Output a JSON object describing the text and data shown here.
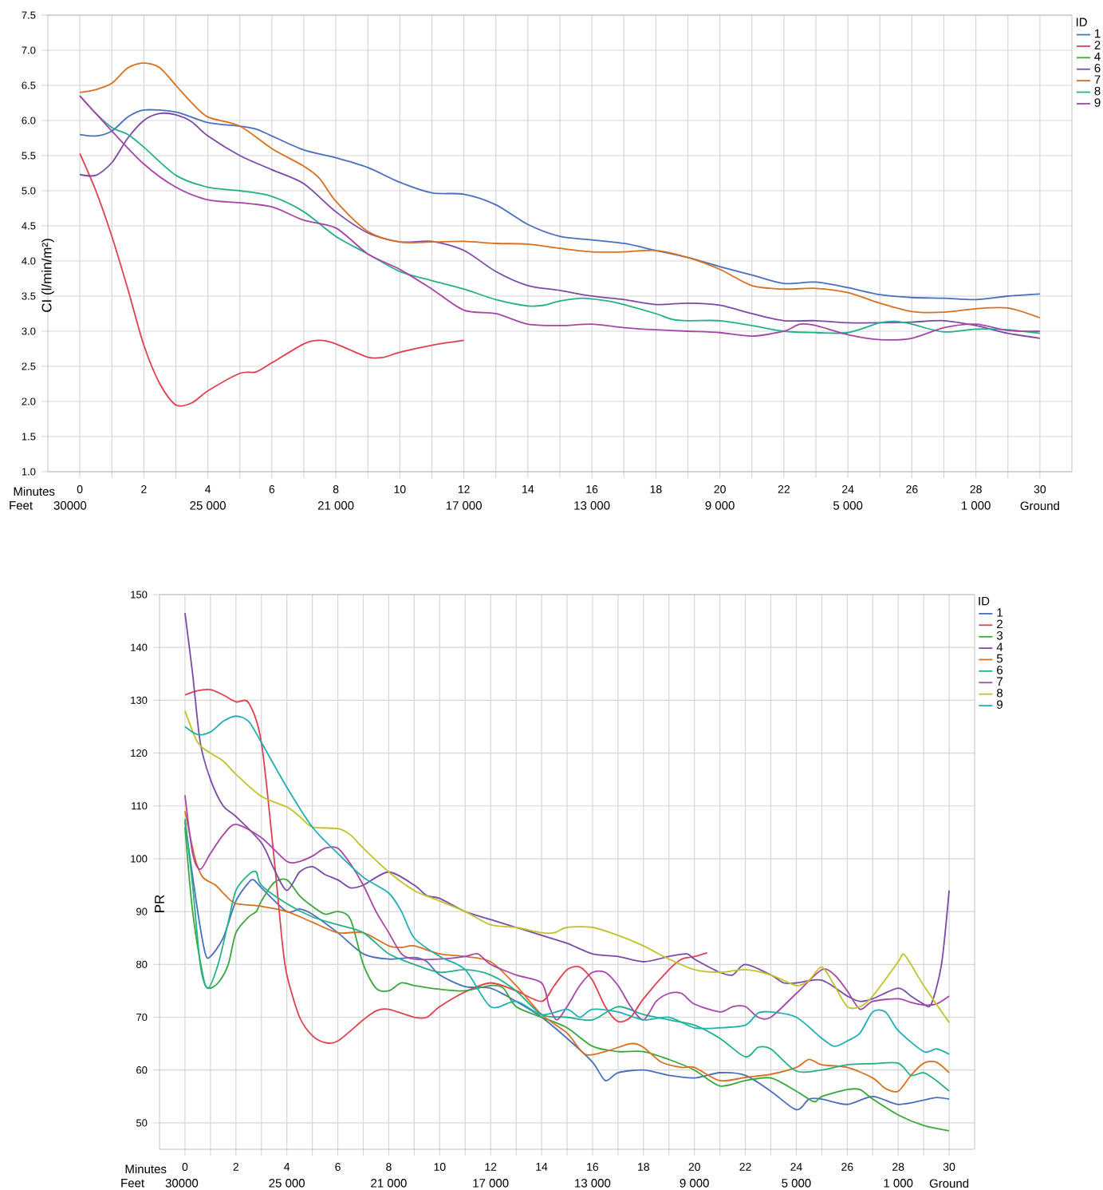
{
  "chart_data": [
    {
      "type": "line",
      "ylabel": "CI (l/min/m²)",
      "xlabel": "Minutes",
      "x2label": "Feet",
      "legend_title": "ID",
      "legend": "top right",
      "grid": true,
      "xlim": [
        -1,
        31
      ],
      "ylim": [
        1.0,
        7.5
      ],
      "x2lim": [
        30000,
        -2000
      ],
      "xticks": [
        0,
        {
          "value": 1,
          "label": null
        },
        2,
        {
          "value": 3,
          "label": null
        },
        4,
        {
          "value": 5,
          "label": null
        },
        6,
        {
          "value": 7,
          "label": null
        },
        8,
        {
          "value": 9,
          "label": null
        },
        10,
        {
          "value": 11,
          "label": null
        },
        12,
        {
          "value": 13,
          "label": null
        },
        14,
        {
          "value": 15,
          "label": null
        },
        16,
        {
          "value": 17,
          "label": null
        },
        18,
        {
          "value": 19,
          "label": null
        },
        20,
        {
          "value": 21,
          "label": null
        },
        22,
        {
          "value": 23,
          "label": null
        },
        24,
        {
          "value": 25,
          "label": null
        },
        26,
        {
          "value": 27,
          "label": null
        },
        28,
        {
          "value": 29,
          "label": null
        },
        30
      ],
      "x2ticks": [
        30000,
        {
          "value": 25000,
          "label": "25 000"
        },
        {
          "value": 21000,
          "label": "21 000"
        },
        {
          "value": 17000,
          "label": "17 000"
        },
        {
          "value": 13000,
          "label": "13 000"
        },
        {
          "value": 9000,
          "label": "9 000"
        },
        {
          "value": 5000,
          "label": "5 000"
        },
        {
          "value": 1000,
          "label": "1 000"
        },
        {
          "value": -1000,
          "label": "Ground"
        }
      ],
      "yticks": [
        {
          "value": 1.0,
          "label": "1.0"
        },
        {
          "value": 1.5,
          "label": "1.5"
        },
        {
          "value": 2.0,
          "label": "2.0"
        },
        {
          "value": 2.5,
          "label": "2.5"
        },
        {
          "value": 3.0,
          "label": "3.0"
        },
        {
          "value": 3.5,
          "label": "3.5"
        },
        {
          "value": 4.0,
          "label": "4.0"
        },
        {
          "value": 4.5,
          "label": "4.5"
        },
        {
          "value": 5.0,
          "label": "5.0"
        },
        {
          "value": 5.5,
          "label": "5.5"
        },
        {
          "value": 6.0,
          "label": "6.0"
        },
        {
          "value": 6.5,
          "label": "6.5"
        },
        {
          "value": 7.0,
          "label": "7.0"
        },
        {
          "value": 7.5,
          "label": "7.5"
        }
      ],
      "series": [
        {
          "name": "1",
          "color": "#4a6fbe",
          "x": [
            0,
            0.5,
            1,
            1.5,
            2,
            3,
            4,
            5,
            5.5,
            6,
            7,
            8,
            9,
            10,
            11,
            12,
            13,
            14,
            15,
            16,
            17,
            18,
            19,
            20,
            21,
            22,
            23,
            24,
            25,
            26,
            27,
            28,
            29,
            30
          ],
          "values": [
            5.8,
            5.78,
            5.85,
            6.05,
            6.15,
            6.12,
            5.97,
            5.92,
            5.88,
            5.78,
            5.58,
            5.47,
            5.33,
            5.12,
            4.97,
            4.95,
            4.8,
            4.52,
            4.35,
            4.3,
            4.25,
            4.15,
            4.05,
            3.92,
            3.8,
            3.68,
            3.7,
            3.62,
            3.52,
            3.48,
            3.47,
            3.45,
            3.5,
            3.53
          ]
        },
        {
          "name": "2",
          "color": "#e0404f",
          "x": [
            0,
            0.5,
            1,
            1.5,
            2,
            2.5,
            3,
            3.5,
            4,
            5,
            5.5,
            6,
            7,
            7.5,
            8,
            9,
            9.5,
            10,
            11,
            12
          ],
          "values": [
            5.53,
            5.0,
            4.35,
            3.6,
            2.8,
            2.25,
            1.95,
            1.98,
            2.15,
            2.4,
            2.42,
            2.55,
            2.82,
            2.87,
            2.82,
            2.63,
            2.63,
            2.7,
            2.8,
            2.87
          ]
        },
        {
          "name": "4",
          "color": "#3aa83a"
        },
        {
          "name": "6",
          "color": "#7b4aa8",
          "x": [
            0,
            0.5,
            1,
            1.5,
            2,
            2.5,
            3,
            3.5,
            4,
            5,
            6,
            7,
            8,
            9,
            10,
            11,
            12,
            13,
            14,
            15,
            16,
            17,
            18,
            19,
            20,
            21,
            22,
            23,
            24,
            25,
            26,
            27,
            28,
            29,
            30
          ],
          "values": [
            5.23,
            5.22,
            5.4,
            5.75,
            6.0,
            6.1,
            6.08,
            5.98,
            5.78,
            5.5,
            5.3,
            5.1,
            4.7,
            4.4,
            4.27,
            4.28,
            4.15,
            3.85,
            3.65,
            3.58,
            3.5,
            3.45,
            3.38,
            3.4,
            3.37,
            3.25,
            3.15,
            3.15,
            3.12,
            3.12,
            3.13,
            3.15,
            3.08,
            2.97,
            2.9
          ]
        },
        {
          "name": "7",
          "color": "#d9711f",
          "x": [
            0,
            0.5,
            1,
            1.5,
            2,
            2.5,
            3,
            3.5,
            4,
            5,
            6,
            7,
            7.5,
            8,
            9,
            10,
            11,
            12,
            13,
            14,
            15,
            16,
            17,
            18,
            19,
            20,
            21,
            22,
            23,
            24,
            25,
            26,
            27,
            28,
            29,
            30
          ],
          "values": [
            6.4,
            6.44,
            6.53,
            6.75,
            6.82,
            6.75,
            6.5,
            6.25,
            6.05,
            5.92,
            5.6,
            5.35,
            5.17,
            4.85,
            4.42,
            4.27,
            4.27,
            4.28,
            4.25,
            4.24,
            4.18,
            4.13,
            4.13,
            4.15,
            4.05,
            3.88,
            3.65,
            3.6,
            3.61,
            3.55,
            3.4,
            3.28,
            3.27,
            3.32,
            3.33,
            3.19
          ]
        },
        {
          "name": "8",
          "color": "#23b08a",
          "x": [
            0,
            0.5,
            1,
            1.5,
            2,
            3,
            4,
            5,
            6,
            7,
            8,
            9,
            10,
            11,
            12,
            13,
            14,
            14.5,
            15,
            15.7,
            16.5,
            17,
            18,
            18.5,
            19,
            20,
            21,
            22,
            23,
            24,
            25,
            25.5,
            26,
            27,
            28,
            29,
            30
          ],
          "values": [
            6.35,
            6.1,
            5.9,
            5.8,
            5.62,
            5.22,
            5.05,
            5.0,
            4.92,
            4.7,
            4.35,
            4.1,
            3.85,
            3.72,
            3.6,
            3.45,
            3.36,
            3.37,
            3.43,
            3.47,
            3.43,
            3.38,
            3.25,
            3.17,
            3.15,
            3.15,
            3.08,
            3.0,
            2.98,
            2.98,
            3.12,
            3.14,
            3.1,
            2.99,
            3.03,
            3.02,
            2.97
          ]
        },
        {
          "name": "9",
          "color": "#a945a8",
          "x": [
            0,
            1,
            2,
            3,
            4,
            5,
            6,
            7,
            8,
            9,
            10,
            11,
            12,
            13,
            14,
            15,
            16,
            17,
            18,
            19,
            20,
            21,
            22,
            22.5,
            23,
            24,
            25,
            26,
            27,
            28,
            29,
            30
          ],
          "values": [
            6.35,
            5.85,
            5.38,
            5.05,
            4.87,
            4.83,
            4.77,
            4.58,
            4.47,
            4.1,
            3.88,
            3.6,
            3.3,
            3.25,
            3.1,
            3.08,
            3.1,
            3.05,
            3.02,
            3.0,
            2.98,
            2.93,
            3.0,
            3.1,
            3.08,
            2.95,
            2.88,
            2.9,
            3.05,
            3.1,
            3.01,
            3.0
          ]
        }
      ]
    },
    {
      "type": "line",
      "ylabel": "PR",
      "xlabel": "Minutes",
      "x2label": "Feet",
      "legend_title": "ID",
      "legend": "top right",
      "grid": true,
      "xlim": [
        -1,
        31
      ],
      "ylim": [
        45,
        150
      ],
      "x2lim": [
        30000,
        -2000
      ],
      "xticks": [
        0,
        {
          "value": 1,
          "label": null
        },
        2,
        {
          "value": 3,
          "label": null
        },
        4,
        {
          "value": 5,
          "label": null
        },
        6,
        {
          "value": 7,
          "label": null
        },
        8,
        {
          "value": 9,
          "label": null
        },
        10,
        {
          "value": 11,
          "label": null
        },
        12,
        {
          "value": 13,
          "label": null
        },
        14,
        {
          "value": 15,
          "label": null
        },
        16,
        {
          "value": 17,
          "label": null
        },
        18,
        {
          "value": 19,
          "label": null
        },
        20,
        {
          "value": 21,
          "label": null
        },
        22,
        {
          "value": 23,
          "label": null
        },
        24,
        {
          "value": 25,
          "label": null
        },
        26,
        {
          "value": 27,
          "label": null
        },
        28,
        {
          "value": 29,
          "label": null
        },
        30
      ],
      "x2ticks": [
        30000,
        {
          "value": 25000,
          "label": "25 000"
        },
        {
          "value": 21000,
          "label": "21 000"
        },
        {
          "value": 17000,
          "label": "17 000"
        },
        {
          "value": 13000,
          "label": "13 000"
        },
        {
          "value": 9000,
          "label": "9 000"
        },
        {
          "value": 5000,
          "label": "5 000"
        },
        {
          "value": 1000,
          "label": "1 000"
        },
        {
          "value": -1000,
          "label": "Ground"
        }
      ],
      "yticks": [
        50,
        60,
        70,
        80,
        90,
        100,
        110,
        120,
        130,
        140,
        150
      ],
      "series": [
        {
          "name": "1",
          "color": "#4a6fbe",
          "x": [
            0,
            0.5,
            0.8,
            1,
            1.5,
            2,
            2.5,
            2.7,
            3,
            4,
            4.5,
            5,
            6,
            7,
            8,
            9,
            9.5,
            10,
            11,
            12,
            13,
            14,
            15,
            16,
            16.5,
            17,
            18,
            19,
            20,
            21,
            22,
            23,
            24,
            24.5,
            25,
            26,
            27,
            28,
            29,
            29.5,
            30
          ],
          "values": [
            107,
            90,
            82,
            81.5,
            85,
            92,
            95.5,
            96,
            94.5,
            90,
            90.5,
            89.5,
            86,
            82,
            81,
            81.3,
            80.5,
            78,
            75.8,
            75.5,
            73,
            70,
            66,
            61.5,
            58,
            59.5,
            60,
            59,
            58.5,
            59.5,
            59,
            56,
            52.5,
            54.5,
            54.5,
            53.5,
            55,
            53.5,
            54.3,
            54.8,
            54.5
          ]
        },
        {
          "name": "2",
          "color": "#e0404f",
          "x": [
            0,
            0.5,
            1,
            1.5,
            2,
            2.5,
            3,
            3.5,
            3.8,
            4,
            4.5,
            5,
            5.5,
            6,
            7,
            7.5,
            8,
            9,
            9.5,
            10,
            11,
            12,
            13,
            14,
            14.5,
            15,
            15.5,
            16,
            16.5,
            17,
            17.5,
            18,
            19,
            19.5,
            20,
            20.5
          ],
          "values": [
            131,
            131.8,
            132,
            131,
            129.7,
            129.5,
            122,
            100,
            85,
            78,
            70,
            66.5,
            65.2,
            65.5,
            69.5,
            71.2,
            71.5,
            70,
            70,
            72,
            74.8,
            76.5,
            75,
            73,
            76,
            79,
            79.5,
            77,
            72,
            69.2,
            70,
            73.5,
            79,
            81,
            81.5,
            82.2
          ]
        },
        {
          "name": "3",
          "color": "#3aa83a",
          "x": [
            0,
            0.3,
            0.7,
            0.9,
            1.3,
            1.7,
            2,
            2.5,
            2.8,
            3,
            3.5,
            4,
            4.5,
            5,
            5.5,
            6,
            6.5,
            7,
            7.5,
            8,
            8.5,
            9,
            10,
            11,
            12,
            12.5,
            13,
            14,
            15,
            16,
            17,
            18,
            19,
            20,
            21,
            22,
            23,
            24,
            24.7,
            25,
            26,
            26.5,
            27,
            28,
            29,
            30
          ],
          "values": [
            106,
            90,
            78,
            75.5,
            76.5,
            80,
            86,
            89,
            90,
            92,
            95.5,
            96,
            93,
            91,
            89.5,
            90,
            88.5,
            80,
            75.5,
            75,
            76.5,
            76,
            75.3,
            75,
            76,
            75.5,
            72,
            70,
            68,
            64.5,
            63.5,
            63.5,
            62,
            60,
            57,
            58,
            58.5,
            56,
            54,
            55,
            56.3,
            56.3,
            54.5,
            51.5,
            49.5,
            48.5
          ]
        },
        {
          "name": "4",
          "color": "#7b4aa8",
          "x": [
            0,
            0.3,
            0.6,
            1,
            1.5,
            2,
            3,
            3.5,
            4,
            4.5,
            5,
            5.5,
            6,
            6.5,
            7,
            8,
            9,
            9.5,
            10,
            11,
            12,
            13,
            14,
            15,
            16,
            17,
            18,
            19,
            19.7,
            20,
            21,
            21.5,
            22,
            23,
            23.5,
            24,
            25,
            26,
            26.5,
            27,
            28,
            28.5,
            29,
            29.3,
            29.7,
            30
          ],
          "values": [
            146.5,
            135,
            122,
            115,
            110,
            108,
            103,
            98,
            94,
            97.5,
            98.5,
            97,
            96,
            94.5,
            95,
            97.5,
            95,
            93,
            92.5,
            90,
            88.5,
            87,
            85.5,
            84,
            82,
            81.5,
            80.5,
            81.5,
            82,
            81,
            78.5,
            78,
            80,
            78,
            76.5,
            76.5,
            77,
            74,
            73,
            73.5,
            75.5,
            74,
            72.5,
            72.5,
            80,
            94
          ]
        },
        {
          "name": "5",
          "color": "#d9711f",
          "x": [
            0,
            0.4,
            0.7,
            1.2,
            1.6,
            2,
            3,
            4,
            5,
            6,
            7,
            8,
            8.5,
            9,
            10,
            11,
            12,
            13,
            14,
            15,
            15.7,
            16.5,
            17.5,
            18,
            18.7,
            19.5,
            20,
            21,
            22,
            23,
            24,
            24.5,
            25,
            26,
            27,
            27.5,
            28,
            28.5,
            29,
            29.5,
            30
          ],
          "values": [
            109,
            100,
            96.5,
            95,
            93,
            91.5,
            91,
            90,
            88,
            86,
            86,
            83.5,
            83.2,
            83.5,
            82,
            81.5,
            80.5,
            76,
            70.5,
            67,
            63,
            63.5,
            65,
            64.3,
            61.5,
            60.5,
            60.5,
            58,
            58.6,
            59.2,
            60.5,
            62,
            61,
            60.5,
            58.5,
            56.5,
            56,
            59,
            61.3,
            61.5,
            59.5
          ]
        },
        {
          "name": "6",
          "color": "#23b08a",
          "x": [
            0,
            0.3,
            0.6,
            0.9,
            1.3,
            1.7,
            2,
            2.5,
            2.8,
            3,
            4,
            5,
            6,
            7,
            8,
            9,
            10,
            11,
            12,
            13,
            14,
            15,
            16,
            17,
            18,
            19,
            20,
            21,
            22,
            22.5,
            23,
            24,
            25,
            26,
            27,
            28,
            28.5,
            29,
            29.5,
            30
          ],
          "values": [
            107.5,
            95,
            80,
            75.5,
            80,
            88,
            94,
            97,
            97.5,
            95,
            91.5,
            89,
            87.5,
            86,
            82,
            80,
            78.5,
            79,
            78,
            75,
            70.5,
            70,
            69.5,
            72,
            70.5,
            69.5,
            68.5,
            66,
            62.5,
            64.3,
            64,
            59.8,
            60,
            61,
            61.2,
            61.3,
            59,
            59.5,
            58,
            56
          ]
        },
        {
          "name": "7",
          "color": "#a945a8",
          "x": [
            0,
            0.3,
            0.6,
            1,
            1.5,
            2,
            3,
            4,
            4.5,
            5,
            5.5,
            6,
            6.5,
            7,
            7.5,
            8,
            8.5,
            9,
            10,
            11,
            11.5,
            12,
            13,
            14,
            14.3,
            14.6,
            15,
            15.5,
            16,
            16.5,
            17,
            17.5,
            18,
            18.5,
            19,
            19.5,
            20,
            21,
            21.5,
            22,
            22.5,
            23,
            24,
            25,
            25.5,
            26,
            26.5,
            27,
            28,
            28.5,
            29,
            29.5,
            30
          ],
          "values": [
            112,
            101,
            98,
            101,
            104.5,
            106.5,
            104,
            99.5,
            99.5,
            100.5,
            102,
            102,
            99,
            95,
            90,
            86,
            82,
            81,
            81,
            81.5,
            82,
            80,
            78,
            76.5,
            72,
            69.5,
            72,
            76,
            78.5,
            78.5,
            76,
            72,
            69.5,
            73,
            74.5,
            74.5,
            72.5,
            71,
            72,
            72,
            70,
            70,
            74.5,
            79,
            78,
            75,
            71.5,
            73,
            73.5,
            72.8,
            72.3,
            72.5,
            74
          ]
        },
        {
          "name": "8",
          "color": "#c2c22a",
          "x": [
            0,
            0.5,
            1,
            1.5,
            2,
            3,
            4,
            4.5,
            5,
            6,
            6.5,
            7,
            8,
            9,
            10,
            11,
            12,
            13,
            14,
            14.5,
            15,
            16,
            17,
            18,
            19,
            20,
            21,
            22,
            23,
            24,
            24.5,
            25,
            25.5,
            26,
            26.5,
            27,
            28,
            28.2,
            28.5,
            29,
            30
          ],
          "values": [
            128,
            122,
            120,
            118.5,
            116,
            111.8,
            109.8,
            108,
            106,
            105.7,
            104.5,
            102,
            97.5,
            94,
            92,
            90,
            87.5,
            87,
            86,
            86,
            87,
            87,
            85.5,
            83.5,
            81,
            79,
            78.5,
            79,
            78,
            76,
            77,
            79.5,
            76,
            72,
            72,
            74,
            80.5,
            82,
            80,
            76,
            69
          ]
        },
        {
          "name": "9",
          "color": "#1fb0b5",
          "x": [
            0,
            0.5,
            1,
            1.5,
            2,
            2.5,
            3,
            4,
            5,
            6,
            7,
            8,
            8.5,
            9,
            10,
            11,
            12,
            13,
            14,
            15,
            15.5,
            16,
            17,
            18,
            19,
            20,
            21,
            22,
            22.5,
            23,
            24,
            25,
            25.5,
            26,
            26.5,
            27,
            27.5,
            28,
            29,
            29.5,
            30
          ],
          "values": [
            125,
            123.5,
            124,
            126,
            127,
            126,
            122,
            113.5,
            106,
            101,
            96.5,
            93.5,
            90,
            85,
            81.5,
            79,
            72,
            73,
            70.5,
            71.5,
            70,
            71.5,
            71,
            69.5,
            70,
            68,
            68,
            68.5,
            70.8,
            71,
            70,
            66,
            64.5,
            65.5,
            67,
            71,
            71,
            67.5,
            63.5,
            64,
            63
          ]
        }
      ]
    }
  ]
}
